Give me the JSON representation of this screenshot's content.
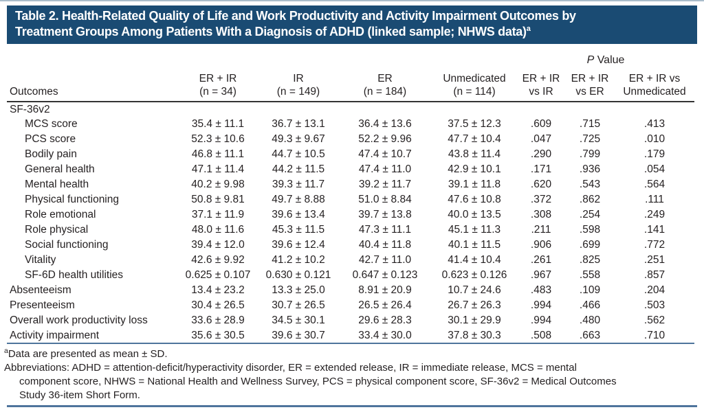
{
  "title": {
    "line1": "Table 2. Health-Related Quality of Life and Work Productivity and Activity Impairment Outcomes by",
    "line2": "Treatment Groups Among Patients With a Diagnosis of ADHD (linked sample; NHWS data)",
    "superscript": "a"
  },
  "table": {
    "header": {
      "outcomes_label": "Outcomes",
      "pvalue_label": "P Value",
      "group_columns": [
        {
          "line1": "ER + IR",
          "line2": "(n = 34)"
        },
        {
          "line1": "IR",
          "line2": "(n = 149)"
        },
        {
          "line1": "ER",
          "line2": "(n = 184)"
        },
        {
          "line1": "Unmedicated",
          "line2": "(n = 114)"
        }
      ],
      "pvalue_columns": [
        {
          "line1": "ER + IR",
          "line2": "vs IR"
        },
        {
          "line1": "ER + IR",
          "line2": "vs ER"
        },
        {
          "line1": "ER + IR vs",
          "line2": "Unmedicated"
        }
      ]
    },
    "rows": [
      {
        "label": "SF-36v2",
        "indent": false,
        "section": true,
        "values": [
          "",
          "",
          "",
          "",
          "",
          "",
          ""
        ]
      },
      {
        "label": "MCS score",
        "indent": true,
        "section": false,
        "values": [
          "35.4 ± 11.1",
          "36.7 ± 13.1",
          "36.4 ± 13.6",
          "37.5 ± 12.3",
          ".609",
          ".715",
          ".413"
        ]
      },
      {
        "label": "PCS score",
        "indent": true,
        "section": false,
        "values": [
          "52.3 ± 10.6",
          "49.3 ± 9.67",
          "52.2 ± 9.96",
          "47.7 ± 10.4",
          ".047",
          ".725",
          ".010"
        ]
      },
      {
        "label": "Bodily pain",
        "indent": true,
        "section": false,
        "values": [
          "46.8 ± 11.1",
          "44.7 ± 10.5",
          "47.4 ± 10.7",
          "43.8 ± 11.4",
          ".290",
          ".799",
          ".179"
        ]
      },
      {
        "label": "General health",
        "indent": true,
        "section": false,
        "values": [
          "47.1 ± 11.4",
          "44.2 ± 11.5",
          "47.4 ± 11.0",
          "42.9 ± 10.1",
          ".171",
          ".936",
          ".054"
        ]
      },
      {
        "label": "Mental health",
        "indent": true,
        "section": false,
        "values": [
          "40.2 ± 9.98",
          "39.3 ± 11.7",
          "39.2 ± 11.7",
          "39.1 ± 11.8",
          ".620",
          ".543",
          ".564"
        ]
      },
      {
        "label": "Physical functioning",
        "indent": true,
        "section": false,
        "values": [
          "50.8 ± 9.81",
          "49.7 ± 8.88",
          "51.0 ± 8.84",
          "47.6 ± 10.8",
          ".372",
          ".862",
          ".111"
        ]
      },
      {
        "label": "Role emotional",
        "indent": true,
        "section": false,
        "values": [
          "37.1 ± 11.9",
          "39.6 ± 13.4",
          "39.7 ± 13.8",
          "40.0 ± 13.5",
          ".308",
          ".254",
          ".249"
        ]
      },
      {
        "label": "Role physical",
        "indent": true,
        "section": false,
        "values": [
          "48.0 ± 11.6",
          "45.3 ± 11.5",
          "47.3 ± 11.1",
          "45.1 ± 11.3",
          ".211",
          ".598",
          ".141"
        ]
      },
      {
        "label": "Social functioning",
        "indent": true,
        "section": false,
        "values": [
          "39.4 ± 12.0",
          "39.6 ± 12.4",
          "40.4 ± 11.8",
          "40.1 ± 11.5",
          ".906",
          ".699",
          ".772"
        ]
      },
      {
        "label": "Vitality",
        "indent": true,
        "section": false,
        "values": [
          "42.6 ± 9.92",
          "41.2 ± 10.2",
          "42.7 ± 11.0",
          "41.4 ± 10.4",
          ".261",
          ".825",
          ".251"
        ]
      },
      {
        "label": "SF-6D health utilities",
        "indent": true,
        "section": false,
        "values": [
          "0.625 ± 0.107",
          "0.630 ± 0.121",
          "0.647 ± 0.123",
          "0.623 ± 0.126",
          ".967",
          ".558",
          ".857"
        ]
      },
      {
        "label": "Absenteeism",
        "indent": false,
        "section": false,
        "values": [
          "13.4 ± 23.2",
          "13.3 ± 25.0",
          "8.91 ± 20.9",
          "10.7 ± 24.6",
          ".483",
          ".109",
          ".204"
        ]
      },
      {
        "label": "Presenteeism",
        "indent": false,
        "section": false,
        "values": [
          "30.4 ± 26.5",
          "30.7 ± 26.5",
          "26.5 ± 26.4",
          "26.7 ± 26.3",
          ".994",
          ".466",
          ".503"
        ]
      },
      {
        "label": "Overall work productivity loss",
        "indent": false,
        "section": false,
        "values": [
          "33.6 ± 28.9",
          "34.5 ± 30.1",
          "29.6 ± 28.3",
          "30.1 ± 29.9",
          ".994",
          ".480",
          ".562"
        ]
      },
      {
        "label": "Activity impairment",
        "indent": false,
        "section": false,
        "values": [
          "35.6 ± 30.5",
          "39.6 ± 30.7",
          "33.4 ± 30.0",
          "37.8 ± 30.3",
          ".508",
          ".663",
          ".710"
        ]
      }
    ]
  },
  "footnotes": {
    "marker": "a",
    "data_note": "Data are presented as mean ± SD.",
    "abbreviation_lines": [
      "Abbreviations: ADHD = attention-deficit/hyperactivity disorder, ER = extended release, IR = immediate release, MCS = mental",
      "component score, NHWS = National Health and Wellness Survey, PCS = physical component score, SF-36v2 = Medical Outcomes",
      "Study 36-item Short Form."
    ]
  },
  "colors": {
    "title_bar_bg": "#1a4b73",
    "title_text": "#ffffff",
    "rule_blue": "#4e749c",
    "top_rule": "#a9bccb",
    "header_rule_dark": "#333333",
    "body_text": "#231f20"
  }
}
